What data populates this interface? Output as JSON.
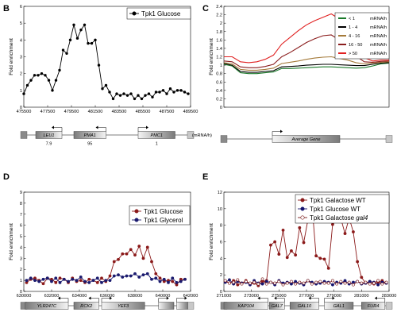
{
  "chart_data": [
    {
      "panel": "B",
      "type": "line",
      "ylabel": "Fold enrichment",
      "xlim": [
        475500,
        489500
      ],
      "ylim": [
        0,
        6
      ],
      "xticks": [
        475500,
        477500,
        479500,
        481500,
        483500,
        485500,
        487500,
        489500
      ],
      "yticks": [
        0,
        1,
        2,
        3,
        4,
        5,
        6
      ],
      "series": [
        {
          "name": "Tpk1 Glucose",
          "color": "#000000",
          "x": [
            475500,
            475800,
            476100,
            476400,
            476700,
            477000,
            477300,
            477600,
            477900,
            478200,
            478500,
            478800,
            479100,
            479400,
            479700,
            480000,
            480300,
            480600,
            480900,
            481200,
            481500,
            481800,
            482100,
            482400,
            482700,
            483000,
            483300,
            483600,
            483900,
            484200,
            484500,
            484800,
            485100,
            485400,
            485700,
            486000,
            486300,
            486600,
            486900,
            487200,
            487500,
            487800,
            488100,
            488400,
            488700,
            489000,
            489300
          ],
          "y": [
            0.8,
            1.3,
            1.6,
            1.9,
            1.9,
            2.0,
            1.9,
            1.6,
            1.0,
            1.6,
            2.2,
            3.4,
            3.2,
            4.0,
            4.9,
            4.1,
            4.6,
            4.9,
            3.8,
            3.8,
            4.0,
            2.5,
            1.1,
            1.3,
            0.9,
            0.5,
            0.8,
            0.7,
            0.8,
            0.7,
            0.8,
            0.5,
            0.7,
            0.5,
            0.7,
            0.8,
            0.6,
            0.9,
            0.9,
            1.0,
            0.8,
            1.1,
            0.9,
            1.0,
            1.0,
            0.9,
            0.8
          ]
        }
      ],
      "genes": [
        {
          "name": "LEU1",
          "start": 476500,
          "end": 478700,
          "strand": "-",
          "value": "7.9"
        },
        {
          "name": "PMA1",
          "start": 479700,
          "end": 482400,
          "strand": "-",
          "value": "95"
        },
        {
          "name": "PMC1",
          "start": 485100,
          "end": 488200,
          "strand": "+",
          "value": "1"
        }
      ],
      "unit_label": "(mRNA/h)"
    },
    {
      "panel": "C",
      "type": "line",
      "ylabel": "Fold enrichment",
      "xlim": [
        0,
        100
      ],
      "ylim": [
        0,
        2.4
      ],
      "yticks": [
        0,
        0.2,
        0.4,
        0.6,
        0.8,
        1.0,
        1.2,
        1.4,
        1.6,
        1.8,
        2.0,
        2.2,
        2.4
      ],
      "series": [
        {
          "name": "< 1",
          "unit": "mRNA/h",
          "color": "#1a7a2a",
          "x": [
            0,
            5,
            10,
            15,
            20,
            25,
            30,
            35,
            40,
            45,
            50,
            55,
            60,
            65,
            70,
            75,
            80,
            85,
            90,
            95,
            100
          ],
          "y": [
            1.02,
            0.98,
            0.82,
            0.8,
            0.8,
            0.82,
            0.84,
            0.92,
            0.92,
            0.93,
            0.94,
            0.95,
            0.96,
            0.96,
            0.95,
            0.94,
            0.93,
            0.94,
            0.98,
            1.03,
            1.05
          ]
        },
        {
          "name": "1 - 4",
          "unit": "mRNA/h",
          "color": "#000000",
          "x": [
            0,
            5,
            10,
            15,
            20,
            25,
            30,
            35,
            40,
            45,
            50,
            55,
            60,
            65,
            70,
            75,
            80,
            85,
            90,
            95,
            100
          ],
          "y": [
            1.04,
            1.0,
            0.85,
            0.83,
            0.83,
            0.85,
            0.87,
            0.96,
            0.97,
            0.98,
            1.0,
            1.01,
            1.02,
            1.02,
            1.01,
            1.0,
            0.99,
            0.99,
            1.02,
            1.05,
            1.06
          ]
        },
        {
          "name": "4 - 16",
          "unit": "mRNA/h",
          "color": "#a47a3a",
          "x": [
            0,
            5,
            10,
            15,
            20,
            25,
            30,
            35,
            40,
            45,
            50,
            55,
            60,
            65,
            70,
            75,
            80,
            85,
            90,
            95,
            100
          ],
          "y": [
            1.06,
            1.03,
            0.9,
            0.88,
            0.88,
            0.9,
            0.93,
            1.04,
            1.07,
            1.1,
            1.14,
            1.17,
            1.19,
            1.2,
            1.16,
            1.12,
            1.06,
            1.03,
            1.05,
            1.07,
            1.08
          ]
        },
        {
          "name": "16 - 50",
          "unit": "mRNA/h",
          "color": "#8b1e1e",
          "x": [
            0,
            5,
            10,
            15,
            20,
            25,
            30,
            35,
            40,
            45,
            50,
            55,
            60,
            65,
            70,
            75,
            80,
            85,
            90,
            95,
            100
          ],
          "y": [
            1.1,
            1.08,
            0.96,
            0.94,
            0.94,
            0.97,
            1.02,
            1.2,
            1.3,
            1.42,
            1.54,
            1.63,
            1.7,
            1.72,
            1.6,
            1.42,
            1.22,
            1.08,
            1.07,
            1.09,
            1.1
          ]
        },
        {
          "name": "> 50",
          "unit": "mRNA/h",
          "color": "#e02020",
          "x": [
            0,
            5,
            10,
            15,
            20,
            25,
            30,
            35,
            40,
            45,
            50,
            55,
            60,
            65,
            70,
            75,
            80,
            85,
            90,
            95,
            100
          ],
          "y": [
            1.2,
            1.2,
            1.08,
            1.06,
            1.08,
            1.14,
            1.24,
            1.5,
            1.66,
            1.82,
            1.96,
            2.06,
            2.14,
            2.22,
            2.1,
            1.8,
            1.48,
            1.18,
            1.1,
            1.12,
            1.12
          ]
        }
      ],
      "genes": [
        {
          "name": "Average Gene",
          "strand": "+"
        }
      ]
    },
    {
      "panel": "D",
      "type": "line",
      "ylabel": "Fold enrichment",
      "xlim": [
        630000,
        642000
      ],
      "ylim": [
        0,
        9
      ],
      "xticks": [
        630000,
        632000,
        634000,
        636000,
        638000,
        640000,
        642000
      ],
      "yticks": [
        0,
        1,
        2,
        3,
        4,
        5,
        6,
        7,
        8,
        9
      ],
      "series": [
        {
          "name": "Tpk1 Glucose",
          "color": "#8b1a1a",
          "x": [
            630200,
            630500,
            630800,
            631100,
            631400,
            631700,
            632000,
            632300,
            632600,
            632900,
            633200,
            633500,
            633800,
            634100,
            634400,
            634700,
            635000,
            635300,
            635600,
            635900,
            636200,
            636500,
            636800,
            637100,
            637400,
            637700,
            638000,
            638300,
            638600,
            638900,
            639200,
            639500,
            639800,
            640100,
            640400,
            640700,
            641000,
            641300,
            641600
          ],
          "y": [
            0.8,
            1.1,
            1.2,
            1.0,
            0.7,
            1.2,
            1.1,
            0.8,
            1.2,
            1.1,
            0.8,
            1.2,
            0.9,
            1.0,
            0.8,
            1.1,
            1.0,
            0.8,
            1.2,
            0.9,
            1.4,
            2.7,
            2.9,
            3.4,
            3.4,
            3.8,
            3.3,
            4.1,
            3.0,
            4.0,
            2.7,
            1.6,
            1.2,
            0.9,
            1.0,
            0.9,
            0.6,
            1.1,
            1.1
          ]
        },
        {
          "name": "Tpk1 Glycerol",
          "color": "#1a1a6e",
          "x": [
            630200,
            630500,
            630800,
            631100,
            631400,
            631700,
            632000,
            632300,
            632600,
            632900,
            633200,
            633500,
            633800,
            634100,
            634400,
            634700,
            635000,
            635300,
            635600,
            635900,
            636200,
            636500,
            636800,
            637100,
            637400,
            637700,
            638000,
            638300,
            638600,
            638900,
            639200,
            639500,
            639800,
            640100,
            640400,
            640700,
            641000,
            641300,
            641600
          ],
          "y": [
            1.0,
            1.2,
            1.0,
            0.9,
            1.1,
            1.2,
            0.9,
            1.2,
            0.8,
            1.1,
            0.9,
            1.1,
            1.0,
            1.3,
            0.9,
            0.8,
            1.0,
            1.2,
            0.8,
            1.0,
            1.0,
            1.4,
            1.5,
            1.3,
            1.4,
            1.4,
            1.6,
            1.3,
            1.5,
            1.6,
            1.1,
            1.2,
            0.9,
            1.1,
            0.8,
            1.2,
            0.8,
            0.9,
            1.1
          ]
        }
      ],
      "genes": [
        {
          "name": "YLR247C",
          "start": 630100,
          "end": 633200,
          "strand": "-"
        },
        {
          "name": "RCK2",
          "start": 633600,
          "end": 635400,
          "strand": "-"
        },
        {
          "name": "YEF3",
          "start": 635600,
          "end": 638700,
          "strand": "+"
        },
        {
          "name": "",
          "start": 639700,
          "end": 640800,
          "strand": "+"
        },
        {
          "name": "",
          "start": 641000,
          "end": 641800,
          "strand": "+"
        }
      ]
    },
    {
      "panel": "E",
      "type": "line",
      "ylabel": "Fold enrichment",
      "xlim": [
        271000,
        283000
      ],
      "ylim": [
        0,
        12
      ],
      "xticks": [
        271000,
        273000,
        275000,
        277000,
        279000,
        281000,
        283000
      ],
      "yticks": [
        0,
        2,
        4,
        6,
        8,
        10,
        12
      ],
      "series": [
        {
          "name": "Tpk1 Galactose WT",
          "color": "#8b1a1a",
          "x": [
            271100,
            271400,
            271700,
            272000,
            272300,
            272600,
            272900,
            273200,
            273500,
            273800,
            274100,
            274400,
            274700,
            275000,
            275300,
            275600,
            275900,
            276200,
            276500,
            276800,
            277100,
            277400,
            277700,
            278000,
            278300,
            278600,
            278900,
            279200,
            279500,
            279800,
            280100,
            280400,
            280700,
            281000,
            281300,
            281600,
            281900,
            282200,
            282500,
            282800
          ],
          "y": [
            1.2,
            1.0,
            1.3,
            0.8,
            1.0,
            1.3,
            0.9,
            1.0,
            0.7,
            1.2,
            1.3,
            5.6,
            6.0,
            4.5,
            7.4,
            4.1,
            4.9,
            4.4,
            7.7,
            5.9,
            8.6,
            10.5,
            4.3,
            4.0,
            3.9,
            2.8,
            8.1,
            8.6,
            8.8,
            7.0,
            8.9,
            7.2,
            3.6,
            1.7,
            1.0,
            1.2,
            0.9,
            1.1,
            1.3,
            1.0
          ]
        },
        {
          "name": "Tpk1 Glucose WT",
          "color": "#14146e",
          "x": [
            271100,
            271400,
            271700,
            272000,
            272300,
            272600,
            272900,
            273200,
            273500,
            273800,
            274100,
            274400,
            274700,
            275000,
            275300,
            275600,
            275900,
            276200,
            276500,
            276800,
            277100,
            277400,
            277700,
            278000,
            278300,
            278600,
            278900,
            279200,
            279500,
            279800,
            280100,
            280400,
            280700,
            281000,
            281300,
            281600,
            281900,
            282200,
            282500,
            282800
          ],
          "y": [
            1.1,
            1.4,
            0.9,
            1.2,
            1.0,
            1.1,
            0.8,
            1.3,
            1.0,
            0.9,
            1.2,
            1.1,
            0.8,
            1.3,
            1.0,
            1.1,
            0.9,
            1.2,
            1.0,
            0.8,
            1.3,
            1.1,
            0.9,
            1.0,
            1.2,
            1.1,
            0.8,
            1.1,
            1.0,
            1.3,
            0.9,
            1.1,
            1.2,
            0.9,
            1.0,
            1.2,
            1.1,
            0.8,
            1.1,
            1.0
          ]
        },
        {
          "name": "Tpk1 Galactose ",
          "name_italic": "gal4",
          "color": "#7a1a1a",
          "hollow": true,
          "x": [
            271100,
            271400,
            271700,
            272000,
            272300,
            272600,
            272900,
            273200,
            273500,
            273800,
            274100,
            274400,
            274700,
            275000,
            275300,
            275600,
            275900,
            276200,
            276500,
            276800,
            277100,
            277400,
            277700,
            278000,
            278300,
            278600,
            278900,
            279200,
            279500,
            279800,
            280100,
            280400,
            280700,
            281000,
            281300,
            281600,
            281900,
            282200,
            282500,
            282800
          ],
          "y": [
            1.3,
            1.0,
            1.1,
            1.4,
            0.9,
            1.2,
            1.0,
            1.1,
            0.9,
            1.5,
            0.9,
            1.1,
            1.0,
            1.2,
            0.8,
            1.0,
            1.2,
            0.9,
            1.1,
            1.0,
            1.3,
            0.9,
            1.1,
            1.2,
            1.0,
            1.0,
            1.3,
            0.9,
            1.2,
            1.0,
            1.1,
            0.8,
            1.2,
            1.0,
            1.1,
            0.9,
            1.0,
            1.3,
            0.9,
            1.1
          ]
        }
      ],
      "genes": [
        {
          "name": "KAP104",
          "start": 271000,
          "end": 274200,
          "strand": "-"
        },
        {
          "name": "GAL7",
          "start": 274300,
          "end": 275400,
          "strand": "-"
        },
        {
          "name": "GAL10",
          "start": 275800,
          "end": 277900,
          "strand": "-"
        },
        {
          "name": "GAL1",
          "start": 278300,
          "end": 280400,
          "strand": "+"
        },
        {
          "name": "FUR4",
          "start": 281000,
          "end": 282700,
          "strand": "-"
        }
      ]
    }
  ]
}
